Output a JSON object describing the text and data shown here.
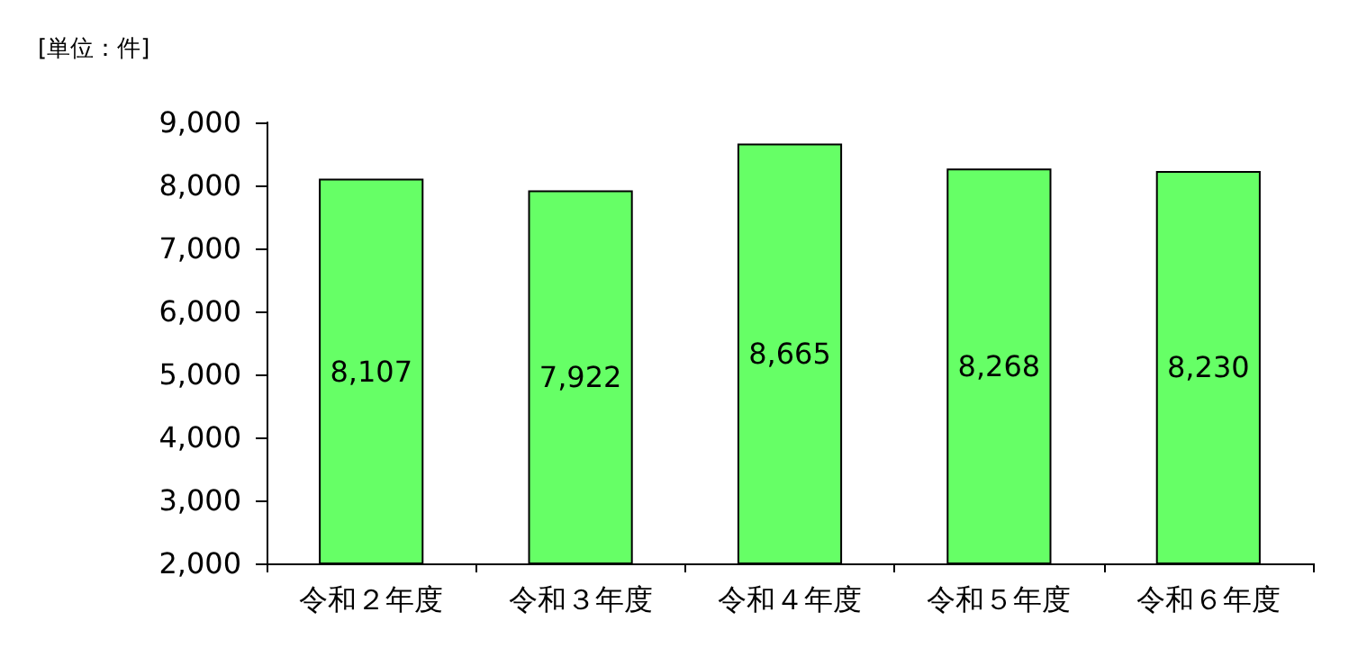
{
  "chart_data": {
    "type": "bar",
    "ylabel": "[単位：件]",
    "categories": [
      "令和２年度",
      "令和３年度",
      "令和４年度",
      "令和５年度",
      "令和６年度"
    ],
    "values": [
      8107,
      7922,
      8665,
      8268,
      8230
    ],
    "value_labels": [
      "8,107",
      "7,922",
      "8,665",
      "8,268",
      "8,230"
    ],
    "color": "#66ff66",
    "ylim": [
      2000,
      9000
    ],
    "yticks": [
      {
        "value": 2000,
        "label": "2,000"
      },
      {
        "value": 3000,
        "label": "3,000"
      },
      {
        "value": 4000,
        "label": "4,000"
      },
      {
        "value": 5000,
        "label": "5,000"
      },
      {
        "value": 6000,
        "label": "6,000"
      },
      {
        "value": 7000,
        "label": "7,000"
      },
      {
        "value": 8000,
        "label": "8,000"
      },
      {
        "value": 9000,
        "label": "9,000"
      }
    ],
    "grid": false
  }
}
